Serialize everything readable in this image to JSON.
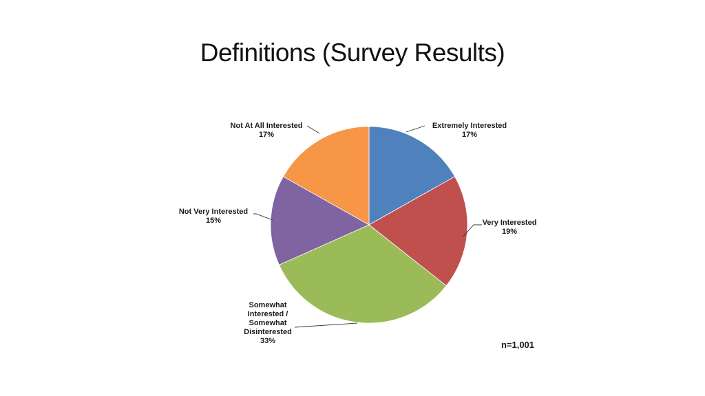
{
  "title": "Definitions (Survey Results)",
  "chart_data": {
    "type": "pie",
    "slices": [
      {
        "label": [
          "Extremely Interested"
        ],
        "value": 17,
        "value_label": "17%",
        "color": "#4f81bd"
      },
      {
        "label": [
          "Very Interested"
        ],
        "value": 19,
        "value_label": "19%",
        "color": "#c0504d"
      },
      {
        "label": [
          "Somewhat",
          "Interested /",
          "Somewhat",
          "Disinterested"
        ],
        "value": 33,
        "value_label": "33%",
        "color": "#9bbb59"
      },
      {
        "label": [
          "Not Very Interested"
        ],
        "value": 15,
        "value_label": "15%",
        "color": "#8064a2"
      },
      {
        "label": [
          "Not At All Interested"
        ],
        "value": 17,
        "value_label": "17%",
        "color": "#f79646"
      }
    ],
    "annotation": "n=1,001",
    "start_angle": "12 o'clock",
    "direction": "clockwise"
  }
}
